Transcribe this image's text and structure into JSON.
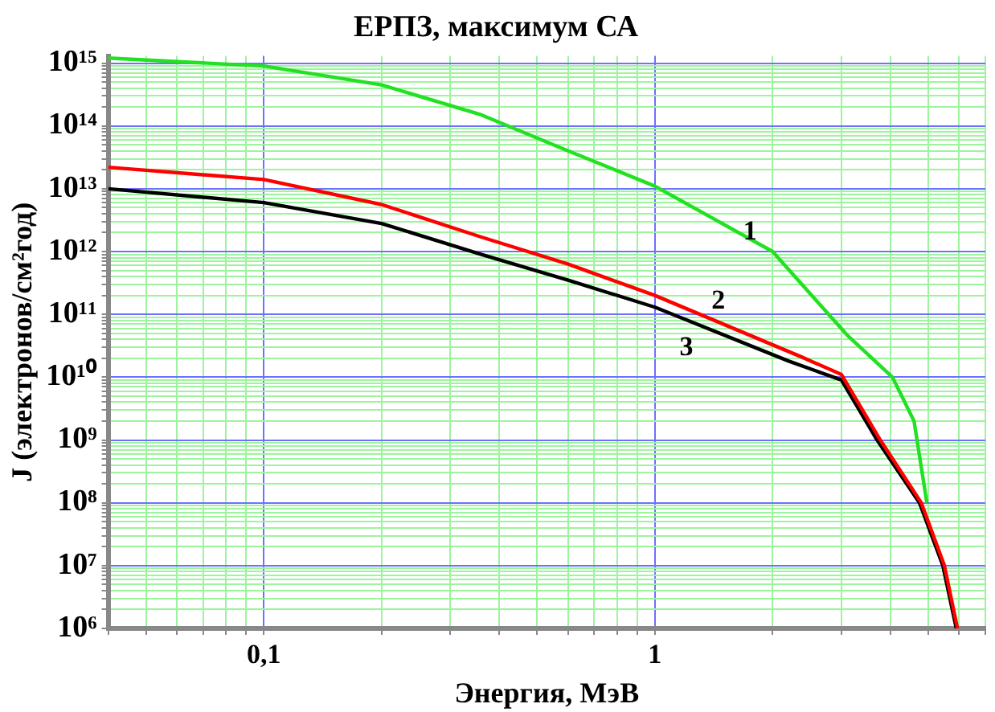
{
  "chart_data": {
    "type": "line",
    "title": "ЕРПЗ, максимум СА",
    "xlabel": "Энергия, МэВ",
    "ylabel": "J (электронов/см²год)",
    "log": "xy",
    "grid": true,
    "legend": false,
    "marker": "none",
    "line_style": "solid",
    "xlim": [
      0.04,
      7
    ],
    "ylim": [
      1000000.0,
      1300000000000000.0
    ],
    "xticks": [
      {
        "value": 0.04,
        "label": null
      },
      {
        "value": 0.05,
        "label": null
      },
      {
        "value": 0.06,
        "label": null
      },
      {
        "value": 0.07,
        "label": null
      },
      {
        "value": 0.08,
        "label": null
      },
      {
        "value": 0.09,
        "label": null
      },
      {
        "value": 0.1,
        "label": "0,1"
      },
      {
        "value": 0.2,
        "label": null
      },
      {
        "value": 0.3,
        "label": null
      },
      {
        "value": 0.4,
        "label": null
      },
      {
        "value": 0.5,
        "label": null
      },
      {
        "value": 0.6,
        "label": null
      },
      {
        "value": 0.7,
        "label": null
      },
      {
        "value": 0.8,
        "label": null
      },
      {
        "value": 0.9,
        "label": null
      },
      1,
      {
        "value": 2,
        "label": null
      },
      {
        "value": 3,
        "label": null
      },
      {
        "value": 4,
        "label": null
      },
      {
        "value": 5,
        "label": null
      },
      {
        "value": 6,
        "label": null
      },
      {
        "value": 7,
        "label": null
      }
    ],
    "yticks": [
      {
        "value": 1000000.0,
        "label": "10⁶"
      },
      {
        "value": 2000000.0,
        "label": null
      },
      {
        "value": 3000000.0,
        "label": null
      },
      {
        "value": 4000000.0,
        "label": null
      },
      {
        "value": 5000000.0,
        "label": null
      },
      {
        "value": 6000000.0,
        "label": null
      },
      {
        "value": 7000000.0,
        "label": null
      },
      {
        "value": 8000000.0,
        "label": null
      },
      {
        "value": 9000000.0,
        "label": null
      },
      {
        "value": 10000000.0,
        "label": "10⁷"
      },
      {
        "value": 20000000.0,
        "label": null
      },
      {
        "value": 30000000.0,
        "label": null
      },
      {
        "value": 40000000.0,
        "label": null
      },
      {
        "value": 50000000.0,
        "label": null
      },
      {
        "value": 60000000.0,
        "label": null
      },
      {
        "value": 70000000.0,
        "label": null
      },
      {
        "value": 80000000.0,
        "label": null
      },
      {
        "value": 90000000.0,
        "label": null
      },
      {
        "value": 100000000.0,
        "label": "10⁸"
      },
      {
        "value": 200000000.0,
        "label": null
      },
      {
        "value": 300000000.0,
        "label": null
      },
      {
        "value": 400000000.0,
        "label": null
      },
      {
        "value": 500000000.0,
        "label": null
      },
      {
        "value": 600000000.0,
        "label": null
      },
      {
        "value": 700000000.0,
        "label": null
      },
      {
        "value": 800000000.0,
        "label": null
      },
      {
        "value": 900000000.0,
        "label": null
      },
      {
        "value": 1000000000.0,
        "label": "10⁹"
      },
      {
        "value": 2000000000.0,
        "label": null
      },
      {
        "value": 3000000000.0,
        "label": null
      },
      {
        "value": 4000000000.0,
        "label": null
      },
      {
        "value": 5000000000.0,
        "label": null
      },
      {
        "value": 6000000000.0,
        "label": null
      },
      {
        "value": 7000000000.0,
        "label": null
      },
      {
        "value": 8000000000.0,
        "label": null
      },
      {
        "value": 9000000000.0,
        "label": null
      },
      {
        "value": 10000000000.0,
        "label": "10¹⁰"
      },
      {
        "value": 20000000000.0,
        "label": null
      },
      {
        "value": 30000000000.0,
        "label": null
      },
      {
        "value": 40000000000.0,
        "label": null
      },
      {
        "value": 50000000000.0,
        "label": null
      },
      {
        "value": 60000000000.0,
        "label": null
      },
      {
        "value": 70000000000.0,
        "label": null
      },
      {
        "value": 80000000000.0,
        "label": null
      },
      {
        "value": 90000000000.0,
        "label": null
      },
      {
        "value": 100000000000.0,
        "label": "10¹¹"
      },
      {
        "value": 200000000000.0,
        "label": null
      },
      {
        "value": 300000000000.0,
        "label": null
      },
      {
        "value": 400000000000.0,
        "label": null
      },
      {
        "value": 500000000000.0,
        "label": null
      },
      {
        "value": 600000000000.0,
        "label": null
      },
      {
        "value": 700000000000.0,
        "label": null
      },
      {
        "value": 800000000000.0,
        "label": null
      },
      {
        "value": 900000000000.0,
        "label": null
      },
      {
        "value": 1000000000000.0,
        "label": "10¹²"
      },
      {
        "value": 2000000000000.0,
        "label": null
      },
      {
        "value": 3000000000000.0,
        "label": null
      },
      {
        "value": 4000000000000.0,
        "label": null
      },
      {
        "value": 5000000000000.0,
        "label": null
      },
      {
        "value": 6000000000000.0,
        "label": null
      },
      {
        "value": 7000000000000.0,
        "label": null
      },
      {
        "value": 8000000000000.0,
        "label": null
      },
      {
        "value": 9000000000000.0,
        "label": null
      },
      {
        "value": 10000000000000.0,
        "label": "10¹³"
      },
      {
        "value": 20000000000000.0,
        "label": null
      },
      {
        "value": 30000000000000.0,
        "label": null
      },
      {
        "value": 40000000000000.0,
        "label": null
      },
      {
        "value": 50000000000000.0,
        "label": null
      },
      {
        "value": 60000000000000.0,
        "label": null
      },
      {
        "value": 70000000000000.0,
        "label": null
      },
      {
        "value": 80000000000000.0,
        "label": null
      },
      {
        "value": 90000000000000.0,
        "label": null
      },
      {
        "value": 100000000000000.0,
        "label": "10¹⁴"
      },
      {
        "value": 200000000000000.0,
        "label": null
      },
      {
        "value": 300000000000000.0,
        "label": null
      },
      {
        "value": 400000000000000.0,
        "label": null
      },
      {
        "value": 500000000000000.0,
        "label": null
      },
      {
        "value": 600000000000000.0,
        "label": null
      },
      {
        "value": 700000000000000.0,
        "label": null
      },
      {
        "value": 800000000000000.0,
        "label": null
      },
      {
        "value": 900000000000000.0,
        "label": null
      },
      {
        "value": 1000000000000000.0,
        "label": "10¹⁵"
      }
    ],
    "series": [
      {
        "color": "#22e022",
        "x": [
          0.04,
          0.1,
          0.2,
          0.36,
          0.6,
          1,
          2,
          3.1,
          4.05,
          4.6,
          4.96
        ],
        "values": [
          1200000000000000.0,
          900000000000000.0,
          450000000000000.0,
          150000000000000.0,
          40000000000000.0,
          11000000000000.0,
          1000000000000.0,
          47000000000.0,
          10000000000.0,
          2000000000.0,
          100000000.0
        ]
      },
      {
        "color": "#ff0000",
        "x": [
          0.04,
          0.1,
          0.2,
          0.36,
          0.6,
          1,
          2.37,
          3,
          3.77,
          4.8,
          5.5,
          5.94
        ],
        "values": [
          22000000000000.0,
          14000000000000.0,
          5600000000000.0,
          1700000000000.0,
          630000000000.0,
          200000000000.0,
          21000000000.0,
          11000000000.0,
          1000000000.0,
          100000000.0,
          10000000.0,
          1000000.0
        ]
      },
      {
        "color": "#000000",
        "x": [
          0.04,
          0.1,
          0.2,
          0.36,
          0.6,
          1,
          2.2,
          3,
          3.7,
          4.75,
          5.45,
          5.9
        ],
        "values": [
          10000000000000.0,
          6000000000000.0,
          2800000000000.0,
          900000000000.0,
          350000000000.0,
          130000000000.0,
          18000000000.0,
          9000000000.0,
          1000000000.0,
          100000000.0,
          10000000.0,
          1000000.0
        ]
      }
    ],
    "annotations": [
      {
        "text": "1",
        "x": 2,
        "y": 1000000000000.0
      },
      {
        "text": "2",
        "x": 1.48,
        "y": 70000000000.0
      },
      {
        "text": "3",
        "x": 1.25,
        "y": 74000000000.0
      }
    ]
  }
}
